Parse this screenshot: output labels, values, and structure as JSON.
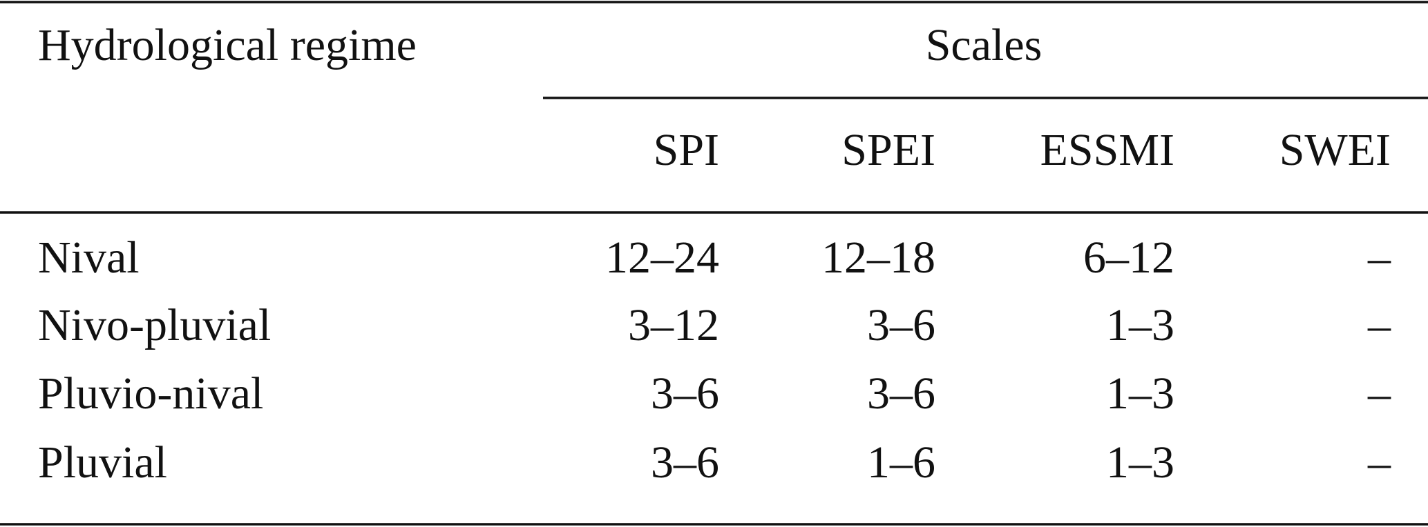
{
  "table": {
    "stub_header": "Hydrological regime",
    "spanner": "Scales",
    "columns": [
      "SPI",
      "SPEI",
      "ESSMI",
      "SWEI"
    ],
    "rows": [
      [
        "Nival",
        "12–24",
        "12–18",
        "6–12",
        "–"
      ],
      [
        "Nivo-pluvial",
        "3–12",
        "3–6",
        "1–3",
        "–"
      ],
      [
        "Pluvio-nival",
        "3–6",
        "3–6",
        "1–3",
        "–"
      ],
      [
        "Pluvial",
        "3–6",
        "1–6",
        "1–3",
        "–"
      ]
    ]
  }
}
